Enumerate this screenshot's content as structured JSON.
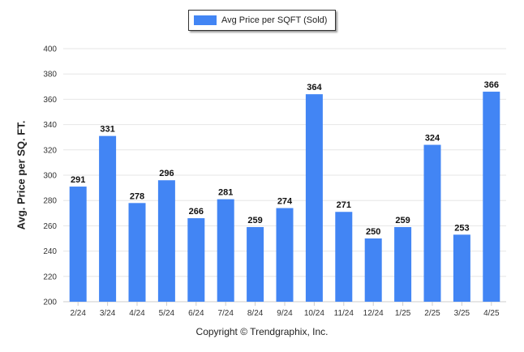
{
  "chart_data": {
    "type": "bar",
    "categories": [
      "2/24",
      "3/24",
      "4/24",
      "5/24",
      "6/24",
      "7/24",
      "8/24",
      "9/24",
      "10/24",
      "11/24",
      "12/24",
      "1/25",
      "2/25",
      "3/25",
      "4/25"
    ],
    "series": [
      {
        "name": "Avg Price per SQFT (Sold)",
        "values": [
          291,
          331,
          278,
          296,
          266,
          281,
          259,
          274,
          364,
          271,
          250,
          259,
          324,
          253,
          366
        ]
      }
    ],
    "ylabel": "Avg. Price per SQ. FT.",
    "xlabel": "",
    "ylim": [
      200,
      400
    ],
    "yticks": [
      200,
      220,
      240,
      260,
      280,
      300,
      320,
      340,
      360,
      380,
      400
    ],
    "grid": true,
    "legend_position": "top-center",
    "data_labels": true
  },
  "footer": "Copyright © Trendgraphix, Inc.",
  "colors": {
    "bar": "#4285f4",
    "grid": "#e6e6e6"
  }
}
